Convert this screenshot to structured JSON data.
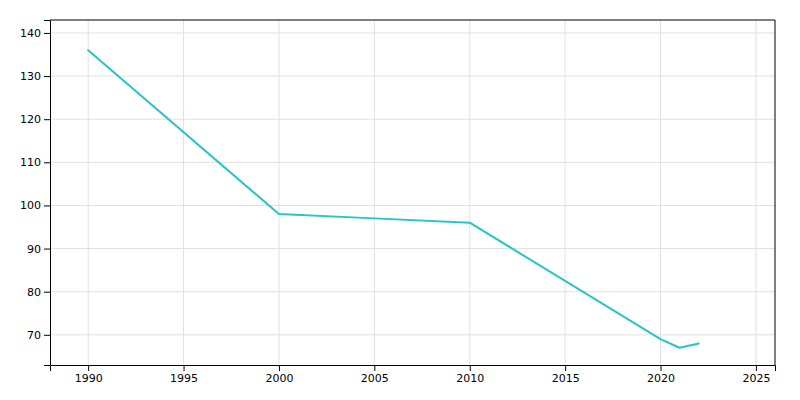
{
  "chart_data": {
    "type": "line",
    "x": [
      1990,
      2000,
      2005,
      2010,
      2020,
      2021,
      2022
    ],
    "values": [
      136,
      98,
      97,
      96,
      69,
      67,
      68
    ],
    "color": "#2ac4c4",
    "xlim": [
      1988,
      2026
    ],
    "ylim": [
      63,
      143
    ],
    "xticks": [
      1990,
      1995,
      2000,
      2005,
      2010,
      2015,
      2020,
      2025
    ],
    "yticks": [
      70,
      80,
      90,
      100,
      110,
      120,
      130,
      140
    ],
    "grid": true
  }
}
